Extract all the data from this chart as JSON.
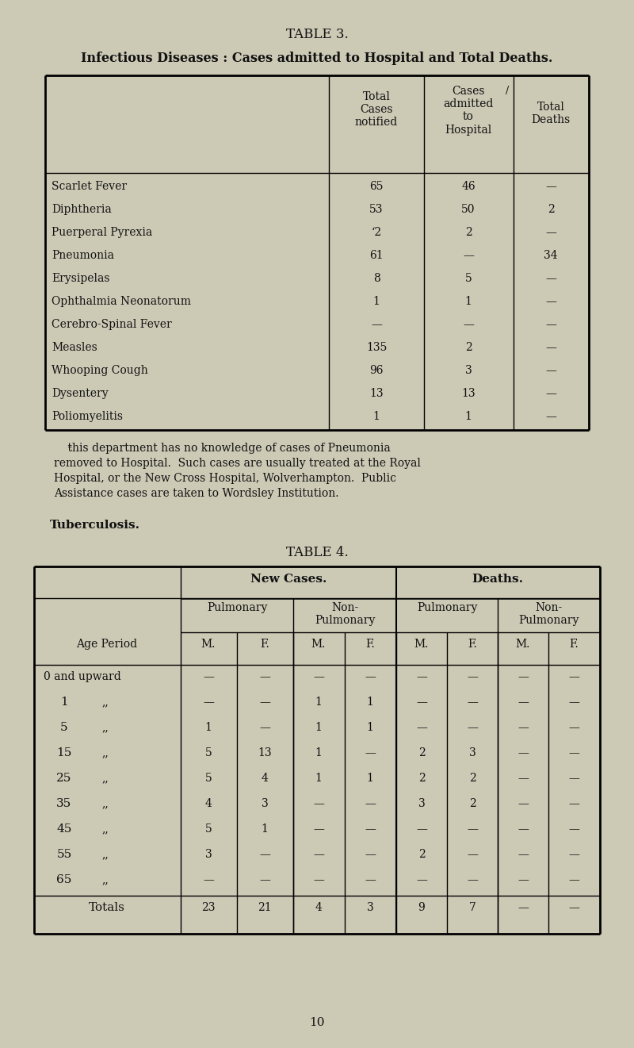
{
  "bg_color": "#ccc9b5",
  "text_color": "#111111",
  "page_title": "TABLE 3.",
  "page_subtitle": "Infectious Diseases : Cases admitted to Hospital and Total Deaths.",
  "table3_rows": [
    [
      "Scarlet Fever",
      "65",
      "46",
      "—"
    ],
    [
      "Diphtheria",
      "53",
      "50",
      "2"
    ],
    [
      "Puerperal Pyrexia",
      "‘2",
      "2",
      "—"
    ],
    [
      "Pneumonia",
      "61",
      "—",
      "34"
    ],
    [
      "Erysipelas",
      "8",
      "5",
      "—"
    ],
    [
      "Ophthalmia Neonatorum",
      "1",
      "1",
      "—"
    ],
    [
      "Cerebro-Spinal Fever",
      "—",
      "—",
      "—"
    ],
    [
      "Measles",
      "135",
      "2",
      "—"
    ],
    [
      "Whooping Cough",
      "96",
      "3",
      "—"
    ],
    [
      "Dysentery",
      "13",
      "13",
      "—"
    ],
    [
      "Poliomyelitis",
      "1",
      "1",
      "—"
    ]
  ],
  "note_lines": [
    "    ŧhis department has no knowledge of cases of Pneumonia",
    "removed to Hospital.  Such cases are usually treated at the Royal",
    "Hospital, or the New Cross Hospital, Wolverhampton.  Public",
    "Assistance cases are taken to Wordsley Institution."
  ],
  "tuberculosis_label": "Tuberculosis.",
  "table4_title": "TABLE 4.",
  "table4_mf_headers": [
    "M.",
    "F.",
    "M.",
    "F.",
    "M.",
    "F.",
    "M.",
    "F."
  ],
  "table4_rows": [
    [
      "0 and upward",
      "—",
      "—",
      "—",
      "—",
      "—",
      "—",
      "—",
      "—"
    ],
    [
      "1",
      "—",
      "—",
      "1",
      "1",
      "—",
      "—",
      "—",
      "—"
    ],
    [
      "5",
      "1",
      "—",
      "1",
      "1",
      "—",
      "—",
      "—",
      "—"
    ],
    [
      "15",
      "5",
      "13",
      "1",
      "—",
      "2",
      "3",
      "—",
      "—"
    ],
    [
      "25",
      "5",
      "4",
      "1",
      "1",
      "2",
      "2",
      "—",
      "—"
    ],
    [
      "35",
      "4",
      "3",
      "—",
      "—",
      "3",
      "2",
      "—",
      "—"
    ],
    [
      "45",
      "5",
      "1",
      "—",
      "—",
      "—",
      "—",
      "—",
      "—"
    ],
    [
      "55",
      "3",
      "—",
      "—",
      "—",
      "2",
      "—",
      "—",
      "—"
    ],
    [
      "65",
      "—",
      "—",
      "—",
      "—",
      "—",
      "—",
      "—",
      "—"
    ]
  ],
  "table4_totals": [
    "Totals",
    "23",
    "21",
    "4",
    "3",
    "9",
    "7",
    "—",
    "—"
  ],
  "page_number": "10"
}
